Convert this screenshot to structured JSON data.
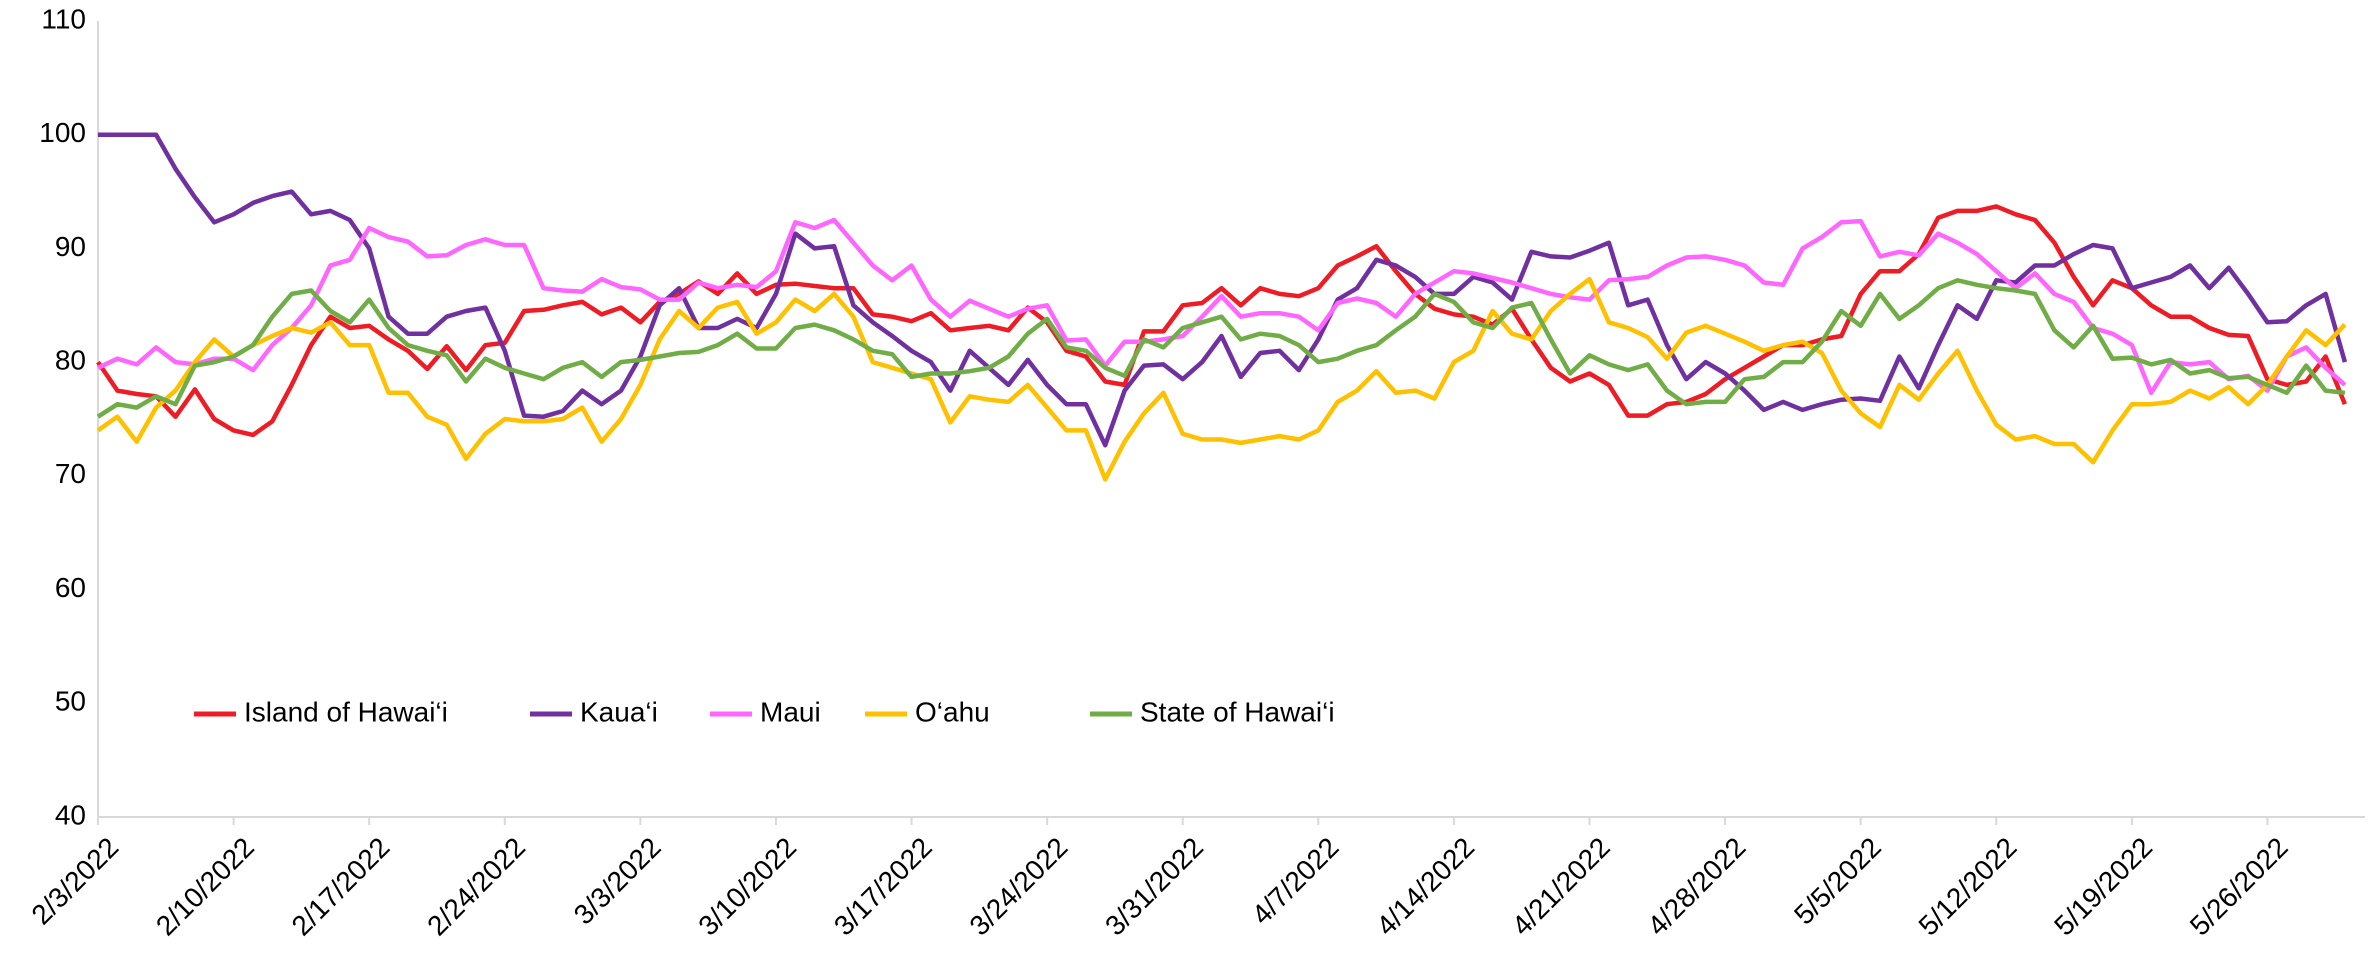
{
  "chart_data": {
    "type": "line",
    "categories": [
      "2/3/2022",
      null,
      null,
      null,
      null,
      null,
      null,
      "2/10/2022",
      null,
      null,
      null,
      null,
      null,
      null,
      "2/17/2022",
      null,
      null,
      null,
      null,
      null,
      null,
      "2/24/2022",
      null,
      null,
      null,
      null,
      null,
      null,
      "3/3/2022",
      null,
      null,
      null,
      null,
      null,
      null,
      "3/10/2022",
      null,
      null,
      null,
      null,
      null,
      null,
      "3/17/2022",
      null,
      null,
      null,
      null,
      null,
      null,
      "3/24/2022",
      null,
      null,
      null,
      null,
      null,
      null,
      "3/31/2022",
      null,
      null,
      null,
      null,
      null,
      null,
      "4/7/2022",
      null,
      null,
      null,
      null,
      null,
      null,
      "4/14/2022",
      null,
      null,
      null,
      null,
      null,
      null,
      "4/21/2022",
      null,
      null,
      null,
      null,
      null,
      null,
      "4/28/2022",
      null,
      null,
      null,
      null,
      null,
      null,
      "5/5/2022",
      null,
      null,
      null,
      null,
      null,
      null,
      "5/12/2022",
      null,
      null,
      null,
      null,
      null,
      null,
      "5/19/2022",
      null,
      null,
      null,
      null,
      null,
      null,
      "5/26/2022",
      null,
      null,
      null,
      null
    ],
    "series": [
      {
        "name": "Island of Hawai‘i",
        "color": "#ee1c25",
        "values": [
          80,
          77.5,
          77.2,
          77,
          75.2,
          77.6,
          75,
          74,
          73.6,
          74.8,
          78,
          81.5,
          84,
          83,
          83.2,
          82,
          81,
          79.4,
          81.4,
          79.3,
          81.5,
          81.7,
          84.5,
          84.6,
          85,
          85.3,
          84.2,
          84.8,
          83.5,
          85.3,
          86,
          87.1,
          86,
          87.8,
          86,
          86.8,
          86.9,
          86.7,
          86.5,
          86.5,
          84.2,
          84,
          83.6,
          84.3,
          82.8,
          83,
          83.2,
          82.8,
          84.8,
          83.5,
          81,
          80.5,
          78.3,
          78,
          82.7,
          82.7,
          85,
          85.2,
          86.5,
          85,
          86.5,
          86,
          85.8,
          86.5,
          88.5,
          89.3,
          90.2,
          88,
          86,
          84.7,
          84.2,
          84,
          83.3,
          84.7,
          82,
          79.5,
          78.3,
          79,
          78,
          75.3,
          75.3,
          76.3,
          76.5,
          77.2,
          78.5,
          79.5,
          80.5,
          81.5,
          81.5,
          82,
          82.3,
          86,
          88,
          88,
          89.5,
          92.7,
          93.3,
          93.3,
          93.7,
          93,
          92.5,
          90.5,
          87.5,
          85,
          87.2,
          86.5,
          85,
          84,
          84,
          83,
          82.4,
          82.3,
          78.5,
          78,
          78.3,
          80.5,
          76.3
        ]
      },
      {
        "name": "Kaua‘i",
        "color": "#7030a0",
        "values": [
          100,
          100,
          100,
          100,
          97,
          94.5,
          92.3,
          93,
          94,
          94.6,
          95,
          93,
          93.3,
          92.5,
          90,
          84,
          82.5,
          82.5,
          84,
          84.5,
          84.8,
          81,
          75.3,
          75.2,
          75.7,
          77.5,
          76.3,
          77.5,
          80.5,
          85,
          86.5,
          83,
          83,
          83.8,
          83,
          86,
          91.3,
          90,
          90.2,
          85,
          83.5,
          82.3,
          81,
          80,
          77.5,
          81,
          79.5,
          78,
          80.2,
          78,
          76.3,
          76.3,
          72.7,
          77.5,
          79.7,
          79.8,
          78.5,
          80,
          82.3,
          78.7,
          80.8,
          81,
          79.3,
          82,
          85.5,
          86.5,
          89,
          88.5,
          87.5,
          86,
          86,
          87.5,
          87,
          85.5,
          89.7,
          89.3,
          89.2,
          89.8,
          90.5,
          85,
          85.5,
          81.5,
          78.5,
          80,
          79,
          77.5,
          75.8,
          76.5,
          75.8,
          76.3,
          76.7,
          76.8,
          76.6,
          80.5,
          77.7,
          81.5,
          85,
          83.8,
          87.2,
          87,
          88.5,
          88.5,
          89.5,
          90.3,
          90,
          86.5,
          87,
          87.5,
          88.5,
          86.5,
          88.3,
          86,
          83.5,
          83.6,
          85,
          86,
          80
        ]
      },
      {
        "name": "Maui",
        "color": "#ff66ff",
        "values": [
          79.5,
          80.3,
          79.8,
          81.3,
          80,
          79.8,
          80.3,
          80.3,
          79.3,
          81.5,
          83,
          85,
          88.5,
          89,
          91.8,
          91,
          90.6,
          89.3,
          89.4,
          90.3,
          90.8,
          90.3,
          90.3,
          86.5,
          86.3,
          86.2,
          87.3,
          86.6,
          86.4,
          85.5,
          85.5,
          87,
          86.5,
          86.8,
          86.6,
          88,
          92.3,
          91.8,
          92.5,
          90.5,
          88.5,
          87.2,
          88.5,
          85.5,
          84,
          85.4,
          84.7,
          84,
          84.7,
          85,
          81.9,
          82,
          79.7,
          81.8,
          81.8,
          82,
          82.3,
          84,
          85.8,
          84,
          84.3,
          84.3,
          84,
          82.8,
          85.2,
          85.6,
          85.2,
          84,
          86,
          87,
          88,
          87.8,
          87.4,
          87,
          86.5,
          86,
          85.7,
          85.5,
          87.2,
          87.3,
          87.5,
          88.5,
          89.2,
          89.3,
          89,
          88.5,
          87,
          86.8,
          90,
          91,
          92.3,
          92.4,
          89.3,
          89.7,
          89.4,
          91.3,
          90.5,
          89.5,
          88,
          86.5,
          87.8,
          86,
          85.3,
          83,
          82.5,
          81.5,
          77.3,
          80,
          79.8,
          80,
          78.5,
          78.8,
          77.5,
          80.5,
          81.3,
          79.5,
          78
        ]
      },
      {
        "name": "O‘ahu",
        "color": "#ffc000",
        "values": [
          74,
          75.2,
          73,
          76,
          77.5,
          80,
          82,
          80.5,
          81.5,
          82.3,
          83,
          82.6,
          83.5,
          81.5,
          81.5,
          77.3,
          77.3,
          75.2,
          74.5,
          71.5,
          73.7,
          75,
          74.8,
          74.8,
          75,
          76,
          73,
          75,
          78,
          82,
          84.5,
          83,
          84.8,
          85.3,
          82.5,
          83.5,
          85.5,
          84.5,
          86,
          84,
          80,
          79.5,
          79,
          78.5,
          74.7,
          77,
          76.7,
          76.5,
          78,
          76,
          74,
          74,
          69.7,
          73,
          75.5,
          77.3,
          73.7,
          73.2,
          73.2,
          72.9,
          73.2,
          73.5,
          73.2,
          74,
          76.5,
          77.5,
          79.2,
          77.3,
          77.5,
          76.8,
          80,
          81,
          84.5,
          82.5,
          82,
          84.5,
          86,
          87.3,
          83.5,
          83,
          82.2,
          80.3,
          82.6,
          83.2,
          82.5,
          81.8,
          81,
          81.5,
          81.8,
          80.8,
          77.5,
          75.5,
          74.3,
          78,
          76.7,
          79,
          81,
          77.5,
          74.5,
          73.2,
          73.5,
          72.8,
          72.8,
          71.2,
          74,
          76.3,
          76.3,
          76.5,
          77.5,
          76.8,
          77.8,
          76.3,
          78,
          80.5,
          82.8,
          81.5,
          83.3
        ]
      },
      {
        "name": "State of Hawai‘i",
        "color": "#70ad47",
        "values": [
          75.2,
          76.3,
          76,
          77,
          76.3,
          79.7,
          80,
          80.5,
          81.5,
          84,
          86,
          86.3,
          84.5,
          83.5,
          85.5,
          83,
          81.5,
          81,
          80.6,
          78.3,
          80.3,
          79.5,
          79,
          78.5,
          79.5,
          80,
          78.7,
          80,
          80.2,
          80.5,
          80.8,
          80.9,
          81.5,
          82.5,
          81.2,
          81.2,
          83,
          83.3,
          82.8,
          82,
          81,
          80.7,
          78.7,
          79,
          79,
          79.2,
          79.5,
          80.5,
          82.5,
          83.8,
          81.3,
          81,
          79.5,
          78.8,
          82,
          81.3,
          83,
          83.5,
          84,
          82,
          82.5,
          82.3,
          81.5,
          80,
          80.3,
          81,
          81.5,
          82.8,
          84,
          86,
          85.3,
          83.5,
          83,
          84.8,
          85.2,
          82,
          79,
          80.6,
          79.8,
          79.3,
          79.8,
          77.5,
          76.3,
          76.5,
          76.5,
          78.5,
          78.7,
          80,
          80,
          81.8,
          84.5,
          83.2,
          86,
          83.8,
          85,
          86.5,
          87.2,
          86.8,
          86.5,
          86.3,
          86,
          82.8,
          81.3,
          83.2,
          80.3,
          80.4,
          79.8,
          80.2,
          79,
          79.3,
          78.6,
          78.7,
          78,
          77.3,
          79.7,
          77.5,
          77.3
        ]
      }
    ],
    "ylim": [
      40,
      110
    ],
    "yticks": [
      40,
      50,
      60,
      70,
      80,
      90,
      100,
      110
    ],
    "grid": false,
    "legend": "bottom-left"
  }
}
